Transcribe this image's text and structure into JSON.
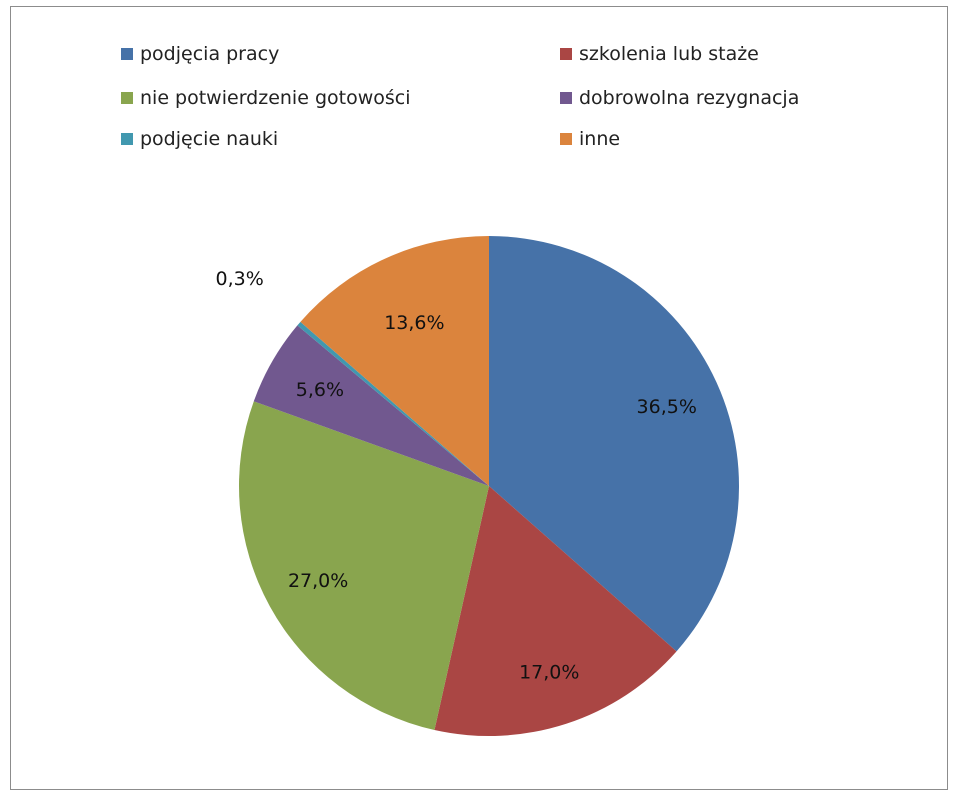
{
  "chart_data": {
    "type": "pie",
    "categories": [
      "podjęcia pracy",
      "szkolenia lub staże",
      "nie potwierdzenie gotowości",
      "dobrowolna rezygnacja",
      "podjęcie nauki",
      "inne"
    ],
    "values": [
      36.5,
      17.0,
      27.0,
      5.6,
      0.3,
      13.6
    ],
    "labels": [
      "36,5%",
      "17,0%",
      "27,0%",
      "5,6%",
      "0,3%",
      "13,6%"
    ],
    "colors": [
      "#4672A8",
      "#AA4644",
      "#89A54E",
      "#71588F",
      "#4198AF",
      "#DB843D"
    ],
    "legend_position": "top"
  }
}
